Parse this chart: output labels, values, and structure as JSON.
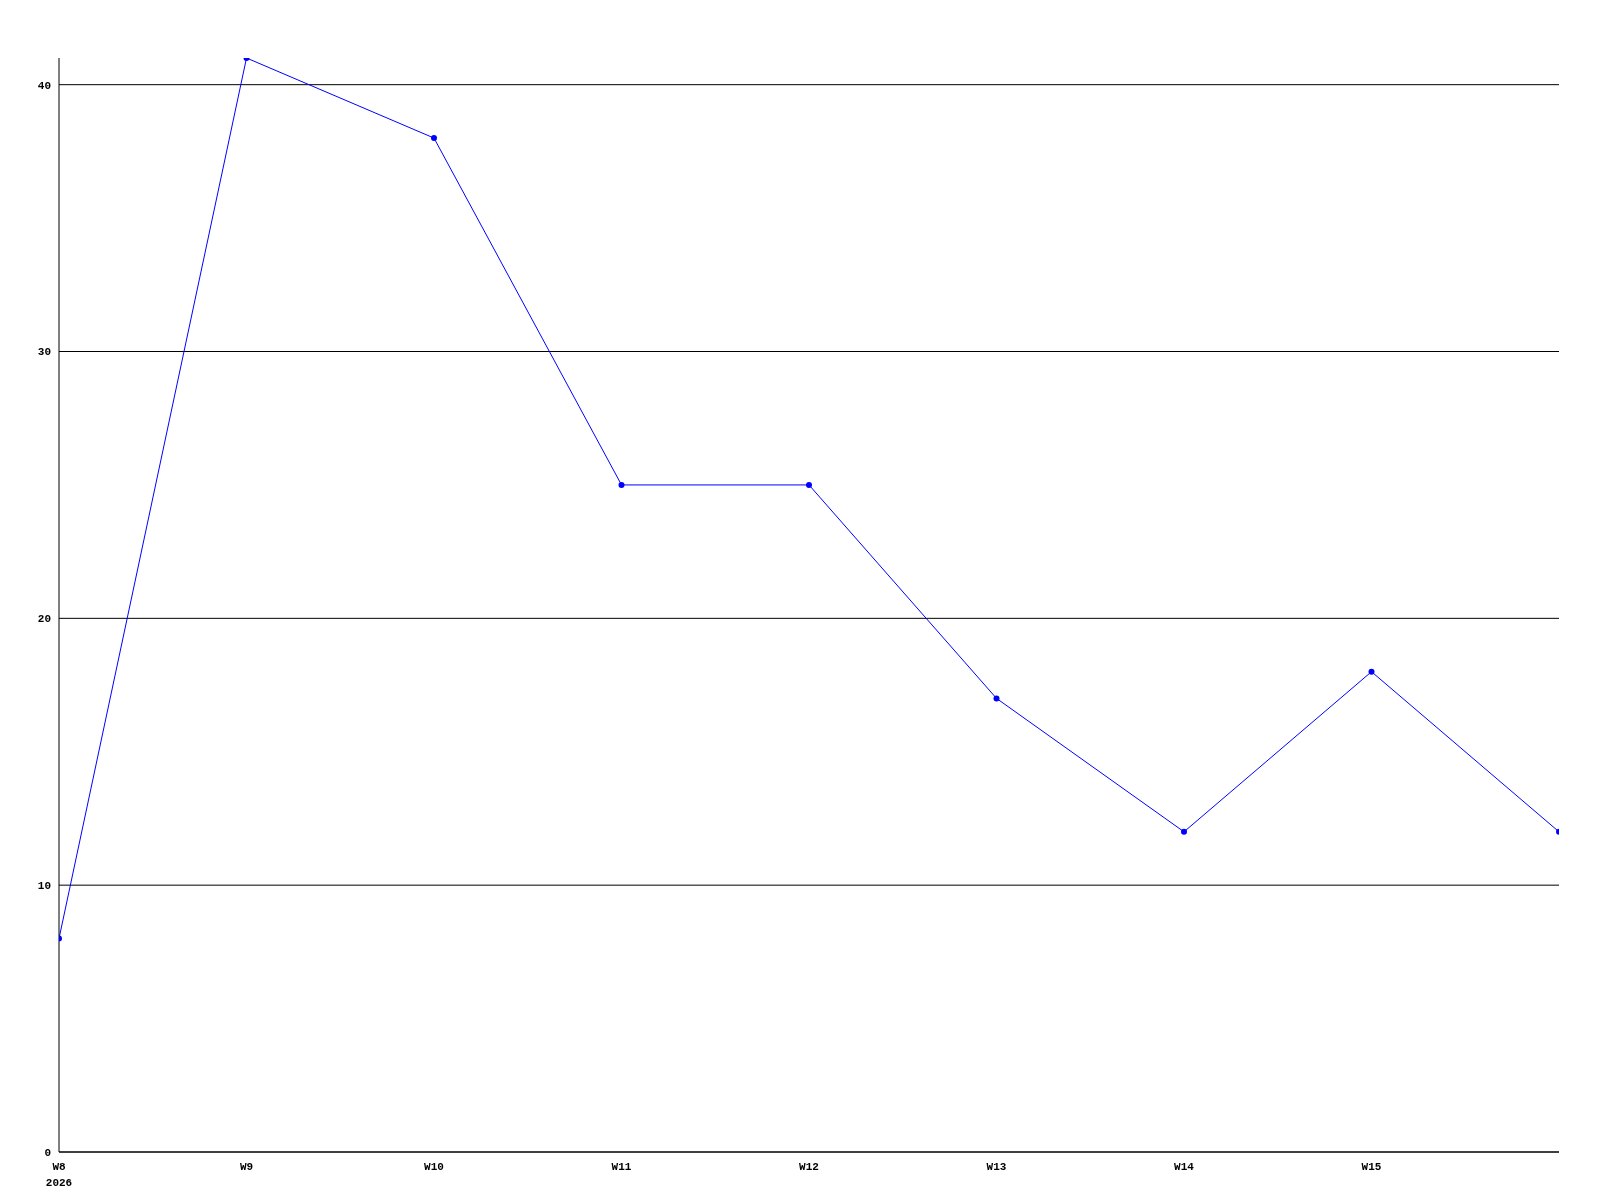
{
  "chart_data": {
    "type": "line",
    "categories": [
      "W8\n2026",
      "W9",
      "W10",
      "W11",
      "W12",
      "W13",
      "W14",
      "W15",
      null
    ],
    "series": [
      {
        "color": "#0000ff",
        "values": [
          8,
          41,
          38,
          25,
          25,
          17,
          12,
          18,
          12
        ]
      }
    ],
    "ylim": [
      0,
      41
    ],
    "yticks": [
      0,
      10,
      20,
      30,
      40
    ],
    "grid": "y",
    "marker": "circle",
    "line_style": "solid"
  }
}
